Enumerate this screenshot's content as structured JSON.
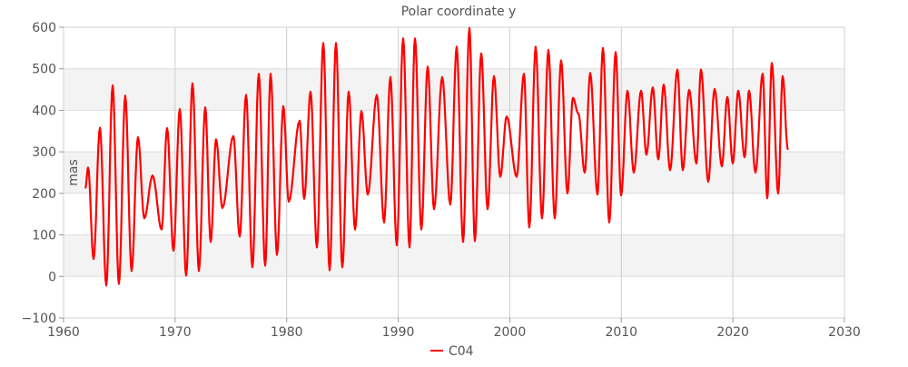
{
  "chart_data": {
    "type": "line",
    "title": "Polar coordinate y",
    "xlabel": "",
    "ylabel": "mas",
    "xlim": [
      1960,
      2030
    ],
    "ylim": [
      -100,
      600
    ],
    "xticks": [
      1960,
      1970,
      1980,
      1990,
      2000,
      2010,
      2020,
      2030
    ],
    "yticks": [
      -100,
      0,
      100,
      200,
      300,
      400,
      500,
      600
    ],
    "grid": true,
    "legend_position": "bottom-center",
    "series": [
      {
        "name": "C04",
        "color": "#ff0000",
        "points": [
          [
            1961.95,
            212
          ],
          [
            1962.2,
            262
          ],
          [
            1962.69,
            42
          ],
          [
            1963.26,
            358
          ],
          [
            1963.83,
            -22
          ],
          [
            1964.4,
            460
          ],
          [
            1964.96,
            -18
          ],
          [
            1965.53,
            435
          ],
          [
            1966.1,
            13
          ],
          [
            1966.67,
            335
          ],
          [
            1967.24,
            140
          ],
          [
            1967.98,
            243
          ],
          [
            1968.79,
            113
          ],
          [
            1969.28,
            357
          ],
          [
            1969.85,
            62
          ],
          [
            1970.42,
            403
          ],
          [
            1970.99,
            2
          ],
          [
            1971.56,
            465
          ],
          [
            1972.13,
            13
          ],
          [
            1972.7,
            407
          ],
          [
            1973.19,
            83
          ],
          [
            1973.67,
            330
          ],
          [
            1974.24,
            165
          ],
          [
            1975.22,
            338
          ],
          [
            1975.79,
            96
          ],
          [
            1976.36,
            437
          ],
          [
            1976.93,
            22
          ],
          [
            1977.5,
            488
          ],
          [
            1978.07,
            26
          ],
          [
            1978.56,
            488
          ],
          [
            1979.13,
            52
          ],
          [
            1979.7,
            410
          ],
          [
            1980.19,
            180
          ],
          [
            1981.16,
            375
          ],
          [
            1981.57,
            187
          ],
          [
            1982.14,
            445
          ],
          [
            1982.71,
            70
          ],
          [
            1983.28,
            562
          ],
          [
            1983.85,
            15
          ],
          [
            1984.42,
            562
          ],
          [
            1984.99,
            22
          ],
          [
            1985.56,
            445
          ],
          [
            1986.13,
            113
          ],
          [
            1986.7,
            398
          ],
          [
            1987.27,
            197
          ],
          [
            1988.08,
            437
          ],
          [
            1988.73,
            130
          ],
          [
            1989.3,
            480
          ],
          [
            1989.87,
            75
          ],
          [
            1990.44,
            573
          ],
          [
            1991.01,
            70
          ],
          [
            1991.5,
            573
          ],
          [
            1992.07,
            113
          ],
          [
            1992.64,
            505
          ],
          [
            1993.21,
            162
          ],
          [
            1993.94,
            480
          ],
          [
            1994.67,
            173
          ],
          [
            1995.24,
            553
          ],
          [
            1995.81,
            83
          ],
          [
            1996.38,
            598
          ],
          [
            1996.87,
            85
          ],
          [
            1997.44,
            537
          ],
          [
            1998.01,
            162
          ],
          [
            1998.58,
            482
          ],
          [
            1999.15,
            240
          ],
          [
            1999.72,
            385
          ],
          [
            2000.62,
            240
          ],
          [
            2001.27,
            488
          ],
          [
            2001.75,
            118
          ],
          [
            2002.32,
            553
          ],
          [
            2002.89,
            140
          ],
          [
            2003.46,
            545
          ],
          [
            2004.03,
            140
          ],
          [
            2004.6,
            520
          ],
          [
            2005.17,
            200
          ],
          [
            2005.66,
            430
          ],
          [
            2006.15,
            392
          ],
          [
            2006.72,
            250
          ],
          [
            2007.21,
            490
          ],
          [
            2007.86,
            197
          ],
          [
            2008.35,
            550
          ],
          [
            2008.92,
            130
          ],
          [
            2009.49,
            540
          ],
          [
            2009.98,
            195
          ],
          [
            2010.55,
            447
          ],
          [
            2011.12,
            250
          ],
          [
            2011.77,
            447
          ],
          [
            2012.25,
            293
          ],
          [
            2012.82,
            455
          ],
          [
            2013.31,
            282
          ],
          [
            2013.8,
            462
          ],
          [
            2014.37,
            256
          ],
          [
            2015.02,
            498
          ],
          [
            2015.51,
            256
          ],
          [
            2016.08,
            449
          ],
          [
            2016.73,
            272
          ],
          [
            2017.14,
            498
          ],
          [
            2017.79,
            228
          ],
          [
            2018.36,
            451
          ],
          [
            2019.01,
            265
          ],
          [
            2019.5,
            432
          ],
          [
            2019.99,
            272
          ],
          [
            2020.48,
            447
          ],
          [
            2021.05,
            287
          ],
          [
            2021.45,
            447
          ],
          [
            2022.02,
            250
          ],
          [
            2022.67,
            488
          ],
          [
            2023.08,
            188
          ],
          [
            2023.49,
            514
          ],
          [
            2024.06,
            200
          ],
          [
            2024.46,
            482
          ],
          [
            2024.93,
            305
          ]
        ]
      }
    ]
  }
}
